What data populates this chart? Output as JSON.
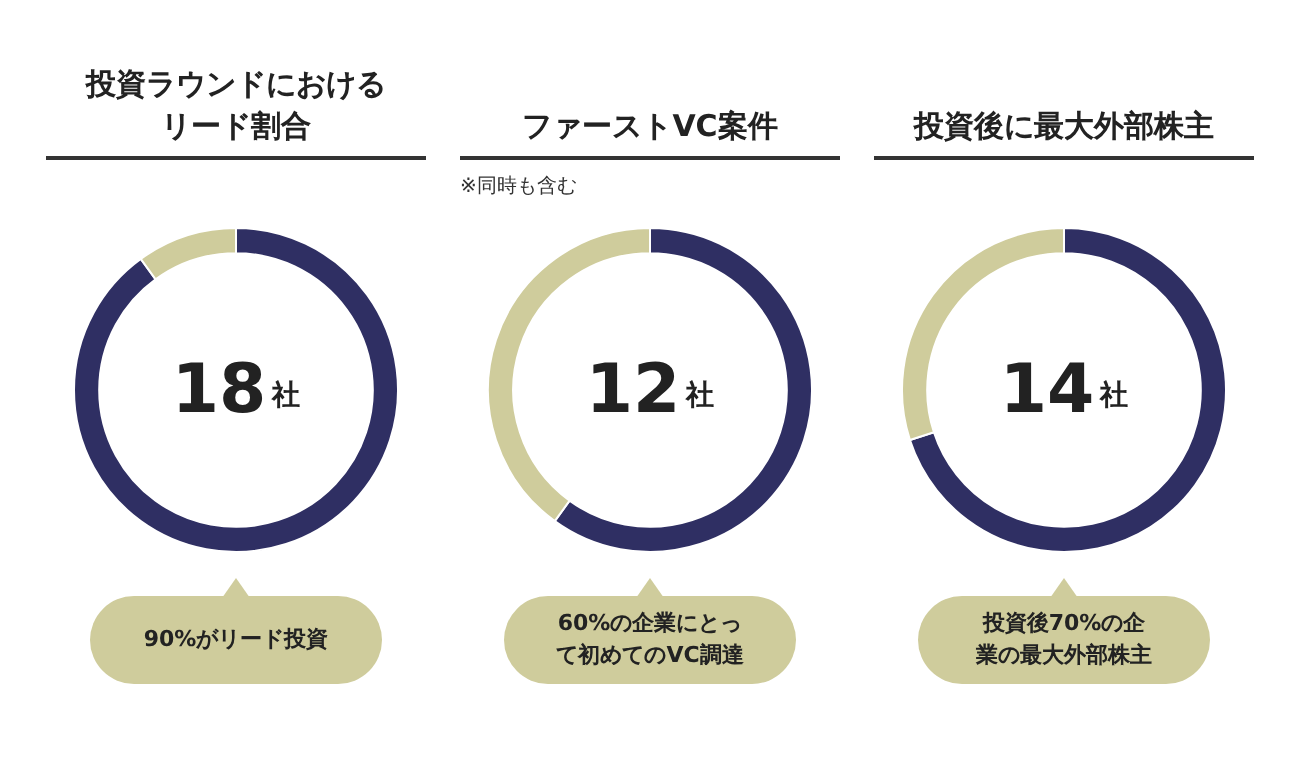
{
  "chart_data": [
    {
      "type": "donut",
      "title": "投資ラウンドにおけるリード割合",
      "categories": [
        null,
        null
      ],
      "values": [
        90,
        10
      ],
      "colors": [
        "#2f2f63",
        "#cfcc9c"
      ],
      "annotations": [
        "18社",
        "90%がリード投資"
      ]
    },
    {
      "type": "donut",
      "title": "ファーストVC案件",
      "subtitle": "※同時も含む",
      "categories": [
        null,
        null
      ],
      "values": [
        60,
        40
      ],
      "colors": [
        "#2f2f63",
        "#cfcc9c"
      ],
      "annotations": [
        "12社",
        "60%の企業にとって初めてのVC調達"
      ]
    },
    {
      "type": "donut",
      "title": "投資後に最大外部株主",
      "categories": [
        null,
        null
      ],
      "values": [
        70,
        30
      ],
      "colors": [
        "#2f2f63",
        "#cfcc9c"
      ],
      "annotations": [
        "14社",
        "投資後70%の企業の最大外部株主"
      ]
    }
  ]
}
